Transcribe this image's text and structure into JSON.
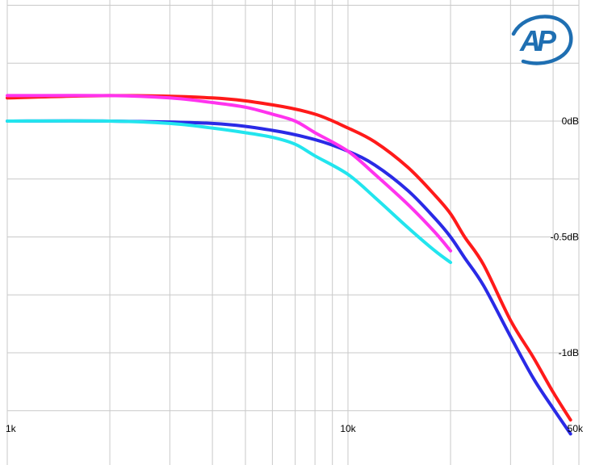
{
  "chart_data": {
    "type": "line",
    "title": "",
    "xlabel": "",
    "ylabel": "",
    "x_scale": "log",
    "xlim": [
      1000,
      50000
    ],
    "ylim": [
      -1.35,
      0.5
    ],
    "grid": true,
    "logo_text": "AP",
    "x_tick_labels": [
      {
        "value": 1000,
        "label": "1k"
      },
      {
        "value": 10000,
        "label": "10k"
      },
      {
        "value": 50000,
        "label": "50k"
      }
    ],
    "y_tick_labels": [
      {
        "value": 0,
        "label": "0dB"
      },
      {
        "value": -0.5,
        "label": "-0.5dB"
      },
      {
        "value": -1,
        "label": "-1dB"
      }
    ],
    "series": [
      {
        "color": "#ff1a1a",
        "x": [
          1000,
          2000,
          4000,
          6000,
          8000,
          10000,
          12000,
          15000,
          18000,
          20000,
          22000,
          25000,
          30000,
          35000,
          40000,
          45000
        ],
        "y": [
          0.1,
          0.11,
          0.1,
          0.07,
          0.03,
          -0.03,
          -0.09,
          -0.2,
          -0.32,
          -0.4,
          -0.5,
          -0.62,
          -0.86,
          -1.02,
          -1.17,
          -1.29
        ]
      },
      {
        "color": "#2a2ae6",
        "x": [
          1000,
          2000,
          4000,
          6000,
          8000,
          10000,
          12000,
          15000,
          18000,
          20000,
          22000,
          25000,
          30000,
          35000,
          40000,
          45000
        ],
        "y": [
          0,
          0,
          -0.01,
          -0.04,
          -0.08,
          -0.13,
          -0.19,
          -0.3,
          -0.42,
          -0.5,
          -0.59,
          -0.71,
          -0.93,
          -1.11,
          -1.24,
          -1.35
        ]
      },
      {
        "color": "#ff33ee",
        "x": [
          1000,
          2000,
          3000,
          4000,
          5000,
          6000,
          7000,
          8000,
          10000,
          12000,
          15000,
          18000,
          20000
        ],
        "y": [
          0.11,
          0.11,
          0.1,
          0.08,
          0.06,
          0.03,
          0.0,
          -0.05,
          -0.13,
          -0.23,
          -0.36,
          -0.48,
          -0.56
        ]
      },
      {
        "color": "#22e5ee",
        "x": [
          1000,
          2000,
          3000,
          4000,
          5000,
          6000,
          7000,
          8000,
          10000,
          12000,
          15000,
          18000,
          20000
        ],
        "y": [
          0,
          0,
          -0.01,
          -0.03,
          -0.05,
          -0.07,
          -0.1,
          -0.15,
          -0.23,
          -0.33,
          -0.46,
          -0.56,
          -0.61
        ]
      }
    ]
  }
}
